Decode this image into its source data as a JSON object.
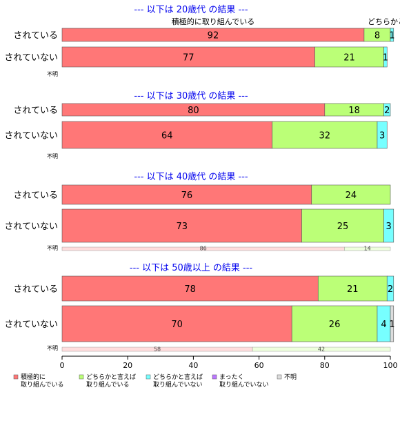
{
  "chart_data": {
    "type": "bar",
    "orientation": "horizontal",
    "stacked": true,
    "xlim": [
      0,
      100
    ],
    "x_ticks": [
      "0",
      "20",
      "40",
      "60",
      "80",
      "100"
    ],
    "segment_labels": [
      "積極的に取り組んでいる",
      "どちらかと言えば"
    ],
    "legend_placement": "bottom",
    "legend": [
      {
        "line1": "積極的に",
        "line2": "取り組んでいる",
        "color": "#ff7777"
      },
      {
        "line1": "どちらかと言えば",
        "line2": "取り組んでいる",
        "color": "#bbff77"
      },
      {
        "line1": "どちらかと言えば",
        "line2": "取り組んでいない",
        "color": "#77ffff"
      },
      {
        "line1": "まったく",
        "line2": "取り組んでいない",
        "color": "#bb77ff"
      },
      {
        "line1": "不明",
        "line2": "",
        "color": "#dddddd"
      }
    ],
    "panels": [
      {
        "title": "--- 以下は 20歳代 の結果 ---",
        "rows": [
          {
            "label": "されている",
            "values": [
              92,
              8,
              1,
              0,
              0
            ],
            "labels": [
              "92",
              "8",
              "1",
              "",
              ""
            ]
          },
          {
            "label": "されていない",
            "values": [
              77,
              21,
              1,
              0,
              0
            ],
            "labels": [
              "77",
              "21",
              "1",
              "",
              ""
            ]
          }
        ],
        "unknown": {
          "label": "不明",
          "values": [],
          "labels": []
        }
      },
      {
        "title": "--- 以下は 30歳代 の結果 ---",
        "rows": [
          {
            "label": "されている",
            "values": [
              80,
              18,
              2,
              0,
              0
            ],
            "labels": [
              "80",
              "18",
              "2",
              "",
              ""
            ]
          },
          {
            "label": "されていない",
            "values": [
              64,
              32,
              3,
              0,
              0
            ],
            "labels": [
              "64",
              "32",
              "3",
              "",
              ""
            ]
          }
        ],
        "unknown": {
          "label": "不明",
          "values": [],
          "labels": []
        }
      },
      {
        "title": "--- 以下は 40歳代 の結果 ---",
        "rows": [
          {
            "label": "されている",
            "values": [
              76,
              24,
              0,
              0,
              0
            ],
            "labels": [
              "76",
              "24",
              "",
              "",
              ""
            ]
          },
          {
            "label": "されていない",
            "values": [
              73,
              25,
              3,
              0,
              0
            ],
            "labels": [
              "73",
              "25",
              "3",
              "",
              ""
            ]
          }
        ],
        "unknown": {
          "label": "不明",
          "values": [
            86,
            14,
            0,
            0,
            0
          ],
          "labels": [
            "86",
            "14",
            "",
            "",
            ""
          ]
        }
      },
      {
        "title": "--- 以下は 50歳以上 の結果 ---",
        "rows": [
          {
            "label": "されている",
            "values": [
              78,
              21,
              2,
              0,
              0
            ],
            "labels": [
              "78",
              "21",
              "2",
              "",
              ""
            ]
          },
          {
            "label": "されていない",
            "values": [
              70,
              26,
              4,
              0,
              1
            ],
            "labels": [
              "70",
              "26",
              "4",
              "",
              "1"
            ]
          }
        ],
        "unknown": {
          "label": "不明",
          "values": [
            58,
            42,
            0,
            0,
            0
          ],
          "labels": [
            "58",
            "42",
            "",
            "",
            ""
          ]
        }
      }
    ]
  }
}
